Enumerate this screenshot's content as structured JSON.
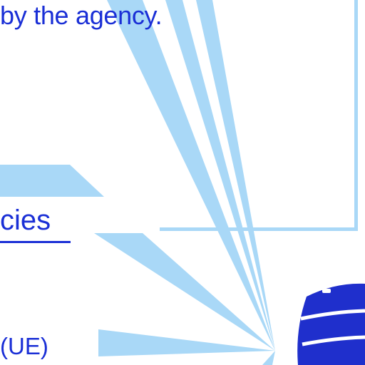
{
  "colors": {
    "beam": "#a9d8f7",
    "frame": "#a9d8f7",
    "text": "#1a2fd6",
    "device": "#1f2fcc",
    "background": "#ffffff"
  },
  "texts": {
    "caption": "by the agency.",
    "link": "cies",
    "ue_label": "(UE)"
  },
  "icons": {
    "device": "antenna-base-station-icon"
  }
}
